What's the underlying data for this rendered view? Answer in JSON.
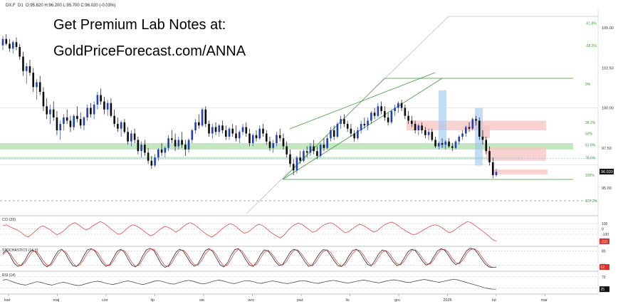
{
  "header": {
    "symbol": "DX.F",
    "interval": "D1",
    "ohlc": "O:95.820 H:96.200 L:95.700 C:96.020 (-0.03%)"
  },
  "overlay": {
    "line1": "Get Premium Lab Notes at:",
    "line2": "GoldPriceForecast.com/ANNA"
  },
  "colors": {
    "up_candle": "#1f3fbf",
    "down_candle": "#0a0a0a",
    "support_zone": "#b9e3b4",
    "resistance_zone": "#f6c7c4",
    "blue_zone": "#9cc7f2",
    "trend_lines": "#3a9a3a",
    "cci_line": "#e0302c",
    "stoch_k": "#111111",
    "stoch_d": "#e0302c",
    "rsi_line": "#333333",
    "last_price_bg": "#111111",
    "cci_tag_bg": "#e0302c"
  },
  "chart_data": {
    "type": "candlestick",
    "price_axis_ticks": [
      "105.00",
      "102.50",
      "100.00",
      "97.50",
      "95.00"
    ],
    "last_price_label": "96.020",
    "x_axis_labels": [
      "kwi",
      "maj",
      "cze",
      "lip",
      "sie",
      "wrz",
      "paź",
      "lis",
      "gru",
      "2026",
      "lut",
      "mar"
    ],
    "fib_levels": [
      {
        "label": "-61.8%",
        "value": 105.3
      },
      {
        "label": "-38.2%",
        "value": 103.9
      },
      {
        "label": "0%",
        "value": 101.5
      },
      {
        "label": "38.2%",
        "value": 99.1
      },
      {
        "label": "50%",
        "value": 98.4
      },
      {
        "label": "61.8%",
        "value": 97.7
      },
      {
        "label": "78.6%",
        "value": 96.9
      },
      {
        "label": "100%",
        "value": 95.8
      },
      {
        "label": "127.2%",
        "value": 94.2
      }
    ],
    "candles": [
      [
        103.9,
        104.5,
        103.6,
        104.3
      ],
      [
        104.3,
        104.6,
        103.9,
        104.0
      ],
      [
        104.0,
        104.3,
        103.5,
        103.7
      ],
      [
        103.7,
        104.2,
        103.4,
        104.1
      ],
      [
        104.1,
        104.4,
        103.6,
        103.8
      ],
      [
        103.8,
        104.0,
        103.0,
        103.2
      ],
      [
        103.2,
        103.5,
        102.0,
        102.3
      ],
      [
        102.3,
        102.8,
        101.5,
        102.6
      ],
      [
        102.6,
        103.0,
        102.0,
        102.2
      ],
      [
        102.2,
        102.5,
        101.0,
        101.3
      ],
      [
        101.3,
        101.8,
        100.5,
        101.6
      ],
      [
        101.6,
        102.0,
        100.8,
        101.0
      ],
      [
        101.0,
        101.3,
        99.8,
        100.1
      ],
      [
        100.1,
        100.6,
        99.3,
        99.6
      ],
      [
        99.6,
        100.2,
        99.0,
        99.9
      ],
      [
        99.9,
        100.4,
        99.2,
        99.4
      ],
      [
        99.4,
        99.8,
        98.3,
        98.6
      ],
      [
        98.6,
        99.2,
        98.0,
        99.0
      ],
      [
        99.0,
        99.6,
        98.6,
        99.4
      ],
      [
        99.4,
        99.9,
        99.0,
        99.2
      ],
      [
        99.2,
        99.5,
        98.5,
        98.8
      ],
      [
        98.8,
        99.6,
        98.6,
        99.5
      ],
      [
        99.5,
        100.1,
        99.1,
        99.3
      ],
      [
        99.3,
        99.7,
        98.7,
        98.9
      ],
      [
        98.9,
        99.5,
        98.6,
        99.4
      ],
      [
        99.4,
        100.2,
        99.2,
        100.0
      ],
      [
        100.0,
        100.3,
        99.4,
        99.6
      ],
      [
        99.6,
        100.4,
        99.3,
        100.2
      ],
      [
        100.2,
        101.0,
        99.9,
        100.8
      ],
      [
        100.8,
        101.2,
        100.2,
        100.4
      ],
      [
        100.4,
        100.7,
        99.6,
        99.9
      ],
      [
        99.9,
        100.5,
        99.5,
        100.3
      ],
      [
        100.3,
        100.6,
        99.4,
        99.5
      ],
      [
        99.5,
        99.9,
        98.8,
        99.0
      ],
      [
        99.0,
        99.4,
        98.5,
        98.7
      ],
      [
        98.7,
        99.2,
        98.2,
        99.1
      ],
      [
        99.1,
        99.3,
        98.4,
        98.5
      ],
      [
        98.5,
        98.8,
        97.7,
        97.9
      ],
      [
        97.9,
        98.6,
        97.6,
        98.4
      ],
      [
        98.4,
        98.7,
        97.8,
        98.0
      ],
      [
        98.0,
        98.2,
        97.1,
        97.3
      ],
      [
        97.3,
        97.9,
        96.9,
        97.7
      ],
      [
        97.7,
        98.0,
        97.0,
        97.2
      ],
      [
        97.2,
        97.5,
        96.5,
        96.7
      ],
      [
        96.7,
        97.0,
        96.2,
        96.4
      ],
      [
        96.4,
        97.1,
        96.3,
        96.9
      ],
      [
        96.9,
        97.5,
        96.7,
        97.4
      ],
      [
        97.4,
        97.8,
        97.0,
        97.2
      ],
      [
        97.2,
        97.6,
        96.9,
        97.5
      ],
      [
        97.5,
        98.3,
        97.3,
        98.1
      ],
      [
        98.1,
        98.6,
        97.8,
        98.0
      ],
      [
        98.0,
        98.4,
        97.3,
        97.6
      ],
      [
        97.6,
        98.2,
        97.4,
        98.0
      ],
      [
        98.0,
        98.5,
        97.5,
        97.7
      ],
      [
        97.7,
        98.0,
        97.0,
        97.4
      ],
      [
        97.4,
        98.1,
        97.2,
        98.0
      ],
      [
        98.0,
        98.7,
        97.8,
        98.6
      ],
      [
        98.6,
        99.3,
        98.4,
        99.1
      ],
      [
        99.1,
        99.6,
        98.7,
        98.9
      ],
      [
        98.9,
        100.0,
        98.8,
        99.9
      ],
      [
        99.9,
        100.1,
        98.8,
        99.0
      ],
      [
        99.0,
        99.2,
        98.2,
        98.4
      ],
      [
        98.4,
        99.0,
        98.1,
        98.8
      ],
      [
        98.8,
        99.1,
        98.3,
        98.5
      ],
      [
        98.5,
        99.0,
        98.2,
        98.9
      ],
      [
        98.9,
        99.2,
        98.4,
        98.6
      ],
      [
        98.6,
        98.9,
        98.0,
        98.2
      ],
      [
        98.2,
        98.8,
        98.0,
        98.7
      ],
      [
        98.7,
        99.0,
        98.2,
        98.4
      ],
      [
        98.4,
        98.9,
        97.9,
        98.1
      ],
      [
        98.1,
        98.6,
        97.8,
        98.5
      ],
      [
        98.5,
        99.0,
        98.3,
        98.8
      ],
      [
        98.8,
        99.1,
        98.2,
        98.4
      ],
      [
        98.4,
        98.7,
        97.6,
        97.8
      ],
      [
        97.8,
        98.4,
        97.6,
        98.3
      ],
      [
        98.3,
        98.6,
        97.9,
        98.1
      ],
      [
        98.1,
        98.9,
        98.0,
        98.7
      ],
      [
        98.7,
        99.0,
        98.2,
        98.4
      ],
      [
        98.4,
        98.6,
        97.7,
        97.9
      ],
      [
        97.9,
        98.2,
        97.3,
        97.5
      ],
      [
        97.5,
        98.0,
        97.2,
        97.8
      ],
      [
        97.8,
        98.5,
        97.6,
        98.3
      ],
      [
        98.3,
        98.7,
        97.9,
        98.1
      ],
      [
        98.1,
        98.4,
        97.4,
        97.6
      ],
      [
        97.6,
        97.9,
        96.9,
        97.1
      ],
      [
        97.1,
        97.4,
        96.3,
        96.5
      ],
      [
        96.5,
        96.8,
        95.8,
        96.1
      ],
      [
        96.1,
        97.0,
        95.9,
        96.9
      ],
      [
        96.9,
        97.3,
        96.5,
        96.7
      ],
      [
        96.7,
        97.4,
        96.6,
        97.3
      ],
      [
        97.3,
        97.6,
        96.9,
        97.2
      ],
      [
        97.2,
        97.8,
        97.0,
        97.6
      ],
      [
        97.6,
        98.0,
        97.1,
        97.3
      ],
      [
        97.3,
        97.6,
        96.8,
        97.0
      ],
      [
        97.0,
        97.8,
        96.9,
        97.7
      ],
      [
        97.7,
        98.1,
        97.3,
        97.5
      ],
      [
        97.5,
        98.3,
        97.4,
        98.1
      ],
      [
        98.1,
        98.8,
        97.9,
        98.6
      ],
      [
        98.6,
        98.9,
        98.0,
        98.2
      ],
      [
        98.2,
        99.1,
        98.1,
        99.0
      ],
      [
        99.0,
        99.5,
        98.7,
        99.3
      ],
      [
        99.3,
        99.6,
        98.8,
        99.0
      ],
      [
        99.0,
        99.2,
        98.5,
        98.7
      ],
      [
        98.7,
        99.0,
        98.2,
        98.4
      ],
      [
        98.4,
        98.6,
        97.9,
        98.1
      ],
      [
        98.1,
        98.8,
        98.0,
        98.6
      ],
      [
        98.6,
        99.2,
        98.4,
        99.0
      ],
      [
        99.0,
        99.4,
        98.7,
        98.9
      ],
      [
        98.9,
        99.4,
        98.6,
        99.2
      ],
      [
        99.2,
        99.8,
        99.0,
        99.7
      ],
      [
        99.7,
        100.0,
        99.3,
        99.5
      ],
      [
        99.5,
        100.3,
        99.4,
        100.1
      ],
      [
        100.1,
        100.4,
        99.6,
        99.8
      ],
      [
        99.8,
        100.1,
        99.2,
        99.4
      ],
      [
        99.4,
        99.7,
        98.9,
        99.1
      ],
      [
        99.1,
        99.9,
        99.0,
        99.8
      ],
      [
        99.8,
        100.2,
        99.5,
        100.0
      ],
      [
        100.0,
        100.4,
        99.7,
        100.3
      ],
      [
        100.3,
        100.5,
        99.8,
        100.0
      ],
      [
        100.0,
        100.2,
        99.3,
        99.5
      ],
      [
        99.5,
        99.8,
        99.0,
        99.2
      ],
      [
        99.2,
        99.5,
        98.8,
        99.0
      ],
      [
        99.0,
        99.2,
        98.4,
        98.6
      ],
      [
        98.6,
        99.0,
        98.3,
        98.9
      ],
      [
        98.9,
        99.1,
        98.4,
        98.6
      ],
      [
        98.6,
        98.8,
        98.1,
        98.3
      ],
      [
        98.3,
        98.7,
        98.0,
        98.5
      ],
      [
        98.5,
        98.7,
        97.9,
        98.0
      ],
      [
        98.0,
        98.2,
        97.5,
        97.6
      ],
      [
        97.6,
        97.9,
        97.4,
        97.8
      ],
      [
        97.8,
        98.1,
        97.5,
        97.7
      ],
      [
        97.7,
        98.0,
        97.4,
        97.9
      ],
      [
        97.9,
        98.1,
        97.5,
        97.6
      ],
      [
        97.6,
        97.8,
        97.3,
        97.5
      ],
      [
        97.5,
        98.0,
        97.4,
        97.9
      ],
      [
        97.9,
        98.3,
        97.7,
        98.2
      ],
      [
        98.2,
        98.6,
        98.0,
        98.4
      ],
      [
        98.4,
        98.9,
        98.2,
        98.8
      ],
      [
        98.8,
        99.1,
        98.5,
        98.7
      ],
      [
        98.7,
        99.4,
        98.6,
        99.3
      ],
      [
        99.3,
        99.5,
        98.9,
        99.2
      ],
      [
        99.2,
        99.4,
        98.0,
        98.2
      ],
      [
        98.2,
        98.6,
        97.7,
        98.0
      ],
      [
        98.0,
        98.2,
        97.1,
        97.3
      ],
      [
        97.3,
        97.6,
        96.4,
        96.6
      ],
      [
        96.6,
        96.9,
        95.6,
        95.8
      ],
      [
        95.8,
        96.2,
        95.7,
        96.0
      ]
    ],
    "annotations": [
      "38.2%",
      "50%",
      "61.8%",
      "78.6%",
      "100%",
      "127.2%",
      "0%",
      "-38.2%",
      "-61.8%"
    ],
    "indicators": [
      {
        "name": "CCI (20)",
        "level_labels": [
          "100",
          "0",
          "-100"
        ],
        "current_label": "-231"
      },
      {
        "name": "STOCHASTICS (14,Y)",
        "level_labels": [
          "80",
          "20"
        ],
        "current_label": "12"
      },
      {
        "name": "RSI (14)",
        "level_labels": [
          "70",
          "30"
        ],
        "current_label": "25"
      }
    ],
    "cci_values": [
      60,
      80,
      40,
      10,
      -20,
      -60,
      -120,
      -150,
      -100,
      -40,
      20,
      60,
      30,
      -10,
      -60,
      -110,
      -80,
      -30,
      40,
      90,
      120,
      80,
      30,
      -20,
      10,
      60,
      100,
      140,
      110,
      60,
      0,
      -50,
      -100,
      -80,
      -20,
      40,
      80,
      60,
      20,
      -30,
      -80,
      -130,
      -100,
      -40,
      10,
      50,
      30,
      -10,
      -60,
      -20,
      40,
      90,
      120,
      90,
      40,
      -20,
      -70,
      -120,
      -150,
      -110,
      -50,
      10,
      60,
      100,
      80,
      30,
      -30,
      -80,
      -60,
      -10,
      50,
      90,
      70,
      20,
      -40,
      -90,
      -130,
      -170,
      -120,
      -40,
      30,
      80,
      110,
      90,
      40,
      -10,
      -60,
      -40,
      20,
      70,
      100,
      120,
      90,
      40,
      -20,
      -70,
      -50,
      0,
      50,
      90,
      70,
      30,
      -20,
      -60,
      -30,
      30,
      80,
      110,
      130,
      100,
      50,
      0,
      -40,
      -80,
      -110,
      -90,
      -50,
      -10,
      30,
      60,
      80,
      60,
      20,
      -30,
      -70,
      -40,
      10,
      60,
      100,
      140,
      120,
      70,
      20,
      -30,
      -80,
      -140,
      -200,
      -231
    ],
    "stoch_k": [
      70,
      85,
      60,
      30,
      15,
      20,
      40,
      70,
      85,
      75,
      50,
      25,
      12,
      25,
      55,
      80,
      88,
      70,
      40,
      18,
      14,
      30,
      60,
      85,
      90,
      80,
      55,
      30,
      15,
      22,
      50,
      78,
      88,
      75,
      45,
      20,
      12,
      28,
      60,
      85,
      92,
      82,
      55,
      25,
      10,
      18,
      45,
      75,
      88,
      80,
      55,
      30,
      15,
      25,
      55,
      82,
      90,
      78,
      50,
      22,
      12,
      30,
      62,
      86,
      90,
      70,
      42,
      20,
      15,
      35,
      65,
      85,
      80,
      60,
      35,
      18,
      22,
      48,
      75,
      88,
      82,
      60,
      35,
      15,
      20,
      45,
      70,
      86,
      84,
      62,
      38,
      18,
      14,
      32,
      60,
      82,
      88,
      74,
      48,
      24,
      16,
      38,
      66,
      84,
      80,
      58,
      34,
      18,
      24,
      50,
      76,
      88,
      82,
      60,
      36,
      20,
      28,
      55,
      80,
      90,
      84,
      62,
      38,
      22,
      30,
      58,
      82,
      92,
      88,
      70,
      45,
      25,
      12,
      10,
      12
    ],
    "stoch_d": [
      65,
      78,
      70,
      45,
      25,
      18,
      30,
      55,
      78,
      80,
      62,
      38,
      20,
      18,
      40,
      68,
      84,
      78,
      55,
      28,
      15,
      22,
      45,
      72,
      88,
      84,
      68,
      42,
      22,
      18,
      38,
      65,
      84,
      82,
      60,
      32,
      16,
      20,
      45,
      72,
      88,
      88,
      68,
      40,
      18,
      14,
      32,
      60,
      82,
      84,
      68,
      42,
      22,
      20,
      40,
      68,
      86,
      84,
      64,
      36,
      17,
      20,
      46,
      74,
      88,
      80,
      56,
      32,
      17,
      25,
      50,
      75,
      83,
      70,
      48,
      26,
      20,
      35,
      62,
      82,
      85,
      70,
      48,
      25,
      17,
      32,
      58,
      78,
      85,
      74,
      50,
      28,
      16,
      22,
      46,
      70,
      85,
      82,
      62,
      36,
      20,
      26,
      52,
      75,
      82,
      70,
      46,
      26,
      21,
      37,
      63,
      82,
      85,
      72,
      48,
      28,
      24,
      42,
      68,
      85,
      87,
      74,
      50,
      30,
      26,
      44,
      70,
      86,
      90,
      80,
      58,
      35,
      18,
      11,
      11
    ],
    "rsi_values": [
      58,
      60,
      55,
      50,
      45,
      42,
      40,
      44,
      48,
      52,
      50,
      46,
      42,
      40,
      44,
      48,
      50,
      47,
      43,
      40,
      38,
      41,
      45,
      49,
      52,
      54,
      51,
      47,
      44,
      42,
      45,
      49,
      53,
      55,
      52,
      48,
      44,
      42,
      46,
      50,
      54,
      56,
      53,
      49,
      45,
      43,
      47,
      51,
      55,
      57,
      54,
      50,
      46,
      44,
      48,
      52,
      56,
      58,
      55,
      51,
      47,
      45,
      49,
      53,
      56,
      55,
      52,
      48,
      46,
      49,
      52,
      55,
      53,
      50,
      47,
      45,
      48,
      51,
      54,
      56,
      54,
      51,
      48,
      46,
      49,
      52,
      55,
      57,
      55,
      52,
      49,
      47,
      50,
      53,
      56,
      58,
      56,
      53,
      50,
      48,
      51,
      54,
      57,
      59,
      57,
      54,
      51,
      49,
      52,
      55,
      58,
      60,
      58,
      55,
      52,
      50,
      53,
      56,
      59,
      61,
      58,
      54,
      50,
      46,
      42,
      38,
      34,
      30,
      27,
      25,
      25
    ]
  }
}
